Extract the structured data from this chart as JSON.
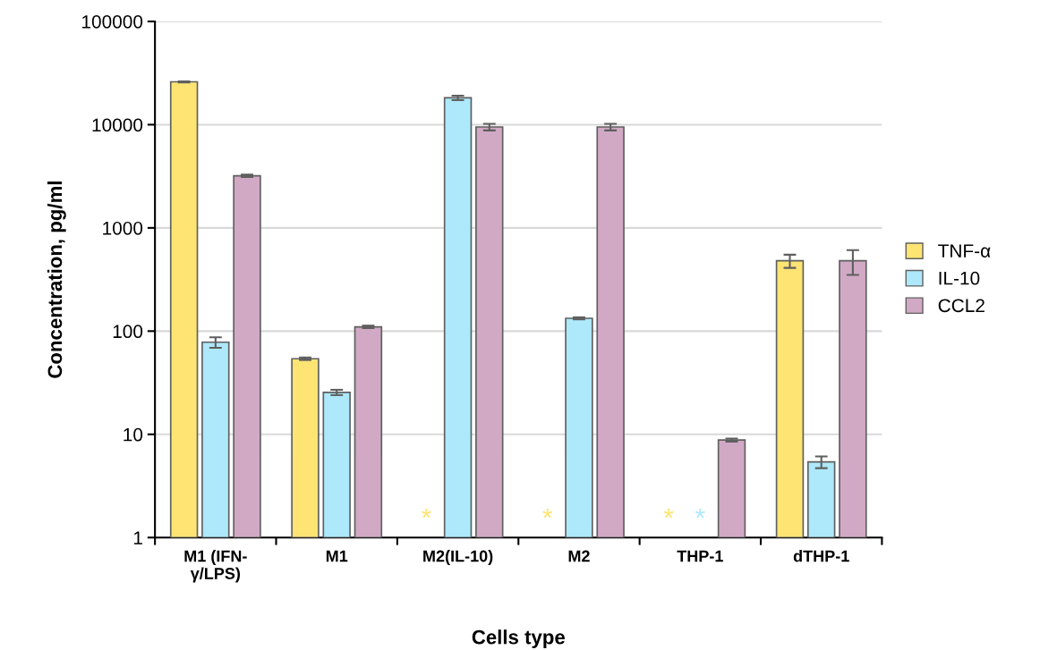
{
  "chart_data": {
    "type": "bar",
    "xlabel": "Cells type",
    "ylabel": "Concentration, pg/ml",
    "categories": [
      "M1 (IFN-\nγ/LPS)",
      "M1",
      "M2(IL-10)",
      "M2",
      "THP-1",
      "dTHP-1"
    ],
    "series": [
      {
        "name": "TNF-α",
        "color": "#fde473",
        "values": [
          26000,
          54,
          null,
          null,
          null,
          480
        ],
        "errors": [
          300,
          1.5,
          null,
          null,
          null,
          70
        ]
      },
      {
        "name": "IL-10",
        "color": "#ade8fb",
        "values": [
          78,
          25.5,
          18200,
          133,
          null,
          5.4
        ],
        "errors": [
          9,
          1.5,
          900,
          3,
          null,
          0.7
        ]
      },
      {
        "name": "CCL2",
        "color": "#d1a9c5",
        "values": [
          3200,
          110,
          9500,
          9500,
          8.8,
          480
        ],
        "errors": [
          80,
          3,
          700,
          700,
          0.3,
          130
        ]
      }
    ],
    "log": true,
    "ylim": [
      1,
      100000
    ],
    "yticks": [
      1,
      10,
      100,
      1000,
      10000,
      100000
    ],
    "grid": "y",
    "legend": "right",
    "annotations": [
      "*",
      "*",
      "*",
      "*"
    ]
  }
}
